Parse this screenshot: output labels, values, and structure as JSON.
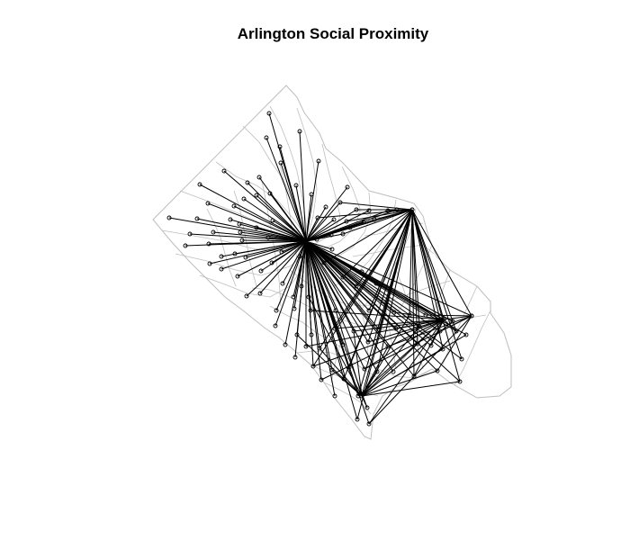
{
  "title": "Arlington Social Proximity",
  "colors": {
    "background": "#ffffff",
    "boundary": "#bebebe",
    "edge": "#000000",
    "node": "#000000"
  },
  "chart_data": {
    "type": "network-map",
    "title": "Arlington Social Proximity",
    "hubs_count_visible": 5,
    "layers": [
      "tract-boundaries",
      "edges",
      "nodes"
    ]
  }
}
